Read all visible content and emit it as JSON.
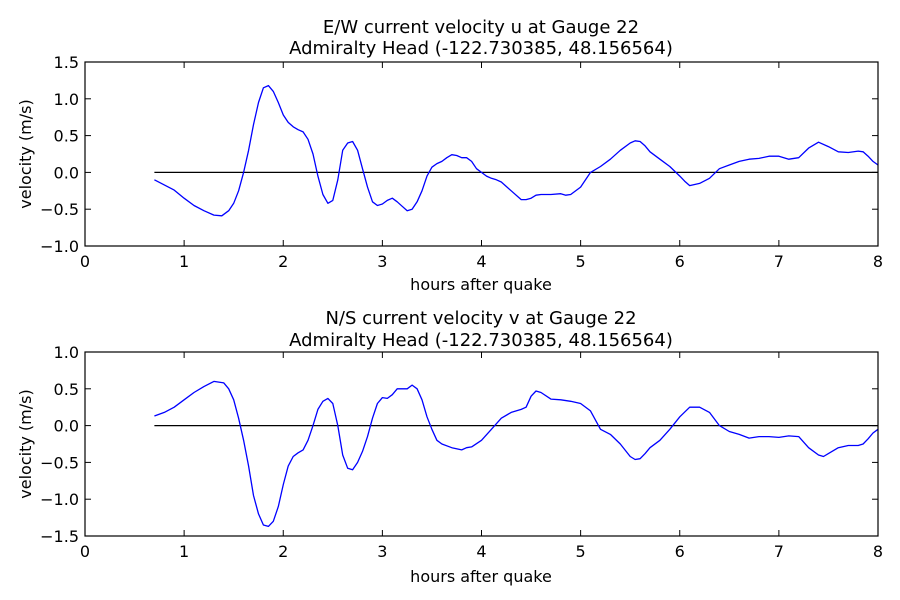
{
  "chart_data": [
    {
      "type": "line",
      "title_line1": "E/W current velocity u at Gauge 22",
      "title_line2": "Admiralty Head  (-122.730385, 48.156564)",
      "xlabel": "hours after quake",
      "ylabel": "velocity (m/s)",
      "xlim": [
        0,
        8
      ],
      "ylim": [
        -1.0,
        1.5
      ],
      "xticks": [
        0,
        1,
        2,
        3,
        4,
        5,
        6,
        7,
        8
      ],
      "xtick_labels": [
        "0",
        "1",
        "2",
        "3",
        "4",
        "5",
        "6",
        "7",
        "8"
      ],
      "yticks": [
        -1.0,
        -0.5,
        0.0,
        0.5,
        1.0,
        1.5
      ],
      "ytick_labels": [
        "−1.0",
        "−0.5",
        "0.0",
        "0.5",
        "1.0",
        "1.5"
      ],
      "zero_line": true,
      "series": [
        {
          "color": "#0000ff",
          "x": [
            0.7,
            0.8,
            0.9,
            1.0,
            1.1,
            1.2,
            1.3,
            1.38,
            1.45,
            1.5,
            1.55,
            1.6,
            1.65,
            1.7,
            1.75,
            1.8,
            1.85,
            1.9,
            1.95,
            2.0,
            2.05,
            2.1,
            2.15,
            2.2,
            2.25,
            2.3,
            2.35,
            2.4,
            2.45,
            2.5,
            2.55,
            2.6,
            2.65,
            2.7,
            2.75,
            2.8,
            2.85,
            2.9,
            2.95,
            3.0,
            3.05,
            3.1,
            3.15,
            3.2,
            3.25,
            3.3,
            3.35,
            3.4,
            3.45,
            3.5,
            3.55,
            3.6,
            3.65,
            3.7,
            3.75,
            3.8,
            3.85,
            3.9,
            3.95,
            4.0,
            4.05,
            4.1,
            4.15,
            4.2,
            4.3,
            4.4,
            4.45,
            4.5,
            4.55,
            4.6,
            4.7,
            4.8,
            4.85,
            4.9,
            5.0,
            5.1,
            5.2,
            5.3,
            5.4,
            5.5,
            5.55,
            5.6,
            5.65,
            5.7,
            5.8,
            5.9,
            6.0,
            6.05,
            6.1,
            6.2,
            6.3,
            6.4,
            6.5,
            6.6,
            6.7,
            6.8,
            6.9,
            7.0,
            7.1,
            7.2,
            7.3,
            7.4,
            7.5,
            7.6,
            7.7,
            7.8,
            7.85,
            7.9,
            7.95,
            8.0
          ],
          "y": [
            -0.1,
            -0.17,
            -0.24,
            -0.35,
            -0.45,
            -0.52,
            -0.58,
            -0.59,
            -0.52,
            -0.42,
            -0.25,
            0.0,
            0.3,
            0.65,
            0.95,
            1.15,
            1.18,
            1.1,
            0.95,
            0.78,
            0.68,
            0.62,
            0.58,
            0.55,
            0.45,
            0.25,
            -0.05,
            -0.3,
            -0.42,
            -0.38,
            -0.1,
            0.3,
            0.4,
            0.42,
            0.3,
            0.05,
            -0.2,
            -0.4,
            -0.45,
            -0.43,
            -0.38,
            -0.35,
            -0.4,
            -0.46,
            -0.52,
            -0.5,
            -0.4,
            -0.25,
            -0.05,
            0.07,
            0.12,
            0.15,
            0.2,
            0.24,
            0.23,
            0.2,
            0.2,
            0.15,
            0.05,
            0.0,
            -0.05,
            -0.08,
            -0.1,
            -0.13,
            -0.25,
            -0.37,
            -0.37,
            -0.35,
            -0.31,
            -0.3,
            -0.3,
            -0.29,
            -0.31,
            -0.3,
            -0.2,
            0.0,
            0.08,
            0.18,
            0.3,
            0.4,
            0.43,
            0.42,
            0.36,
            0.28,
            0.18,
            0.08,
            -0.05,
            -0.12,
            -0.18,
            -0.15,
            -0.08,
            0.05,
            0.1,
            0.15,
            0.18,
            0.19,
            0.22,
            0.22,
            0.18,
            0.2,
            0.33,
            0.41,
            0.35,
            0.28,
            0.27,
            0.29,
            0.28,
            0.22,
            0.15,
            0.1
          ]
        }
      ]
    },
    {
      "type": "line",
      "title_line1": "N/S current velocity v at Gauge 22",
      "title_line2": "Admiralty Head  (-122.730385, 48.156564)",
      "xlabel": "hours after quake",
      "ylabel": "velocity (m/s)",
      "xlim": [
        0,
        8
      ],
      "ylim": [
        -1.5,
        1.0
      ],
      "xticks": [
        0,
        1,
        2,
        3,
        4,
        5,
        6,
        7,
        8
      ],
      "xtick_labels": [
        "0",
        "1",
        "2",
        "3",
        "4",
        "5",
        "6",
        "7",
        "8"
      ],
      "yticks": [
        -1.5,
        -1.0,
        -0.5,
        0.0,
        0.5,
        1.0
      ],
      "ytick_labels": [
        "−1.5",
        "−1.0",
        "−0.5",
        "0.0",
        "0.5",
        "1.0"
      ],
      "zero_line": true,
      "series": [
        {
          "color": "#0000ff",
          "x": [
            0.7,
            0.8,
            0.9,
            1.0,
            1.1,
            1.2,
            1.3,
            1.4,
            1.45,
            1.5,
            1.55,
            1.6,
            1.65,
            1.7,
            1.75,
            1.8,
            1.85,
            1.9,
            1.95,
            2.0,
            2.05,
            2.1,
            2.15,
            2.2,
            2.25,
            2.3,
            2.35,
            2.4,
            2.45,
            2.5,
            2.55,
            2.6,
            2.65,
            2.7,
            2.75,
            2.8,
            2.85,
            2.9,
            2.95,
            3.0,
            3.05,
            3.1,
            3.15,
            3.2,
            3.25,
            3.3,
            3.35,
            3.4,
            3.45,
            3.5,
            3.55,
            3.6,
            3.7,
            3.8,
            3.85,
            3.9,
            4.0,
            4.1,
            4.2,
            4.3,
            4.4,
            4.45,
            4.5,
            4.55,
            4.6,
            4.7,
            4.8,
            4.9,
            5.0,
            5.1,
            5.2,
            5.3,
            5.4,
            5.5,
            5.55,
            5.6,
            5.65,
            5.7,
            5.8,
            5.9,
            6.0,
            6.1,
            6.2,
            6.3,
            6.4,
            6.5,
            6.6,
            6.7,
            6.8,
            6.9,
            7.0,
            7.1,
            7.2,
            7.3,
            7.4,
            7.45,
            7.5,
            7.6,
            7.7,
            7.8,
            7.85,
            7.9,
            7.95,
            8.0
          ],
          "y": [
            0.13,
            0.18,
            0.25,
            0.35,
            0.45,
            0.53,
            0.6,
            0.58,
            0.5,
            0.35,
            0.1,
            -0.2,
            -0.55,
            -0.95,
            -1.2,
            -1.35,
            -1.37,
            -1.3,
            -1.1,
            -0.8,
            -0.55,
            -0.42,
            -0.37,
            -0.33,
            -0.2,
            0.0,
            0.22,
            0.33,
            0.37,
            0.3,
            0.0,
            -0.4,
            -0.58,
            -0.6,
            -0.5,
            -0.35,
            -0.15,
            0.1,
            0.3,
            0.38,
            0.37,
            0.42,
            0.5,
            0.5,
            0.5,
            0.55,
            0.5,
            0.35,
            0.12,
            -0.05,
            -0.2,
            -0.25,
            -0.3,
            -0.33,
            -0.3,
            -0.29,
            -0.2,
            -0.05,
            0.1,
            0.18,
            0.22,
            0.25,
            0.4,
            0.47,
            0.45,
            0.36,
            0.35,
            0.33,
            0.3,
            0.2,
            -0.05,
            -0.12,
            -0.25,
            -0.42,
            -0.46,
            -0.45,
            -0.38,
            -0.3,
            -0.2,
            -0.05,
            0.12,
            0.25,
            0.25,
            0.18,
            0.0,
            -0.08,
            -0.12,
            -0.17,
            -0.15,
            -0.15,
            -0.16,
            -0.14,
            -0.15,
            -0.3,
            -0.4,
            -0.42,
            -0.38,
            -0.3,
            -0.27,
            -0.27,
            -0.25,
            -0.18,
            -0.1,
            -0.05
          ]
        }
      ]
    }
  ]
}
